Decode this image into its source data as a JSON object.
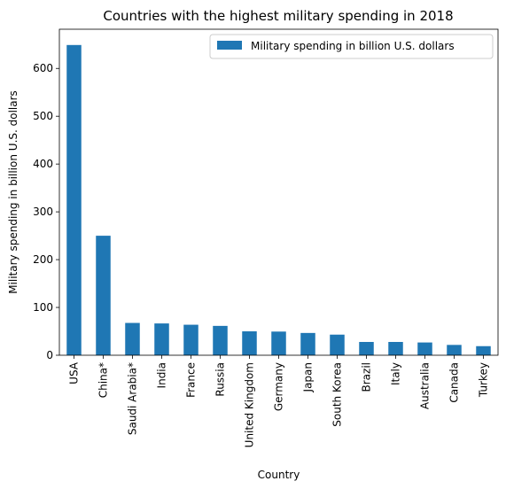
{
  "chart_data": {
    "type": "bar",
    "title": "Countries with the highest military spending in 2018",
    "xlabel": "Country",
    "ylabel": "Military spending in billion U.S. dollars",
    "categories": [
      "USA",
      "China*",
      "Saudi Arabia*",
      "India",
      "France",
      "Russia",
      "United Kingdom",
      "Germany",
      "Japan",
      "South Korea",
      "Brazil",
      "Italy",
      "Australia",
      "Canada",
      "Turkey"
    ],
    "series": [
      {
        "name": "Military spending in billion U.S. dollars",
        "color": "#1f77b4",
        "values": [
          649,
          250,
          67.6,
          66.5,
          63.8,
          61.4,
          50,
          49.5,
          46.6,
          43.1,
          27.8,
          27.8,
          26.7,
          21.6,
          19
        ]
      }
    ],
    "ylim": [
      0,
      682
    ],
    "yticks": [
      0,
      100,
      200,
      300,
      400,
      500,
      600
    ],
    "grid": false,
    "legend_position": "top-right"
  }
}
